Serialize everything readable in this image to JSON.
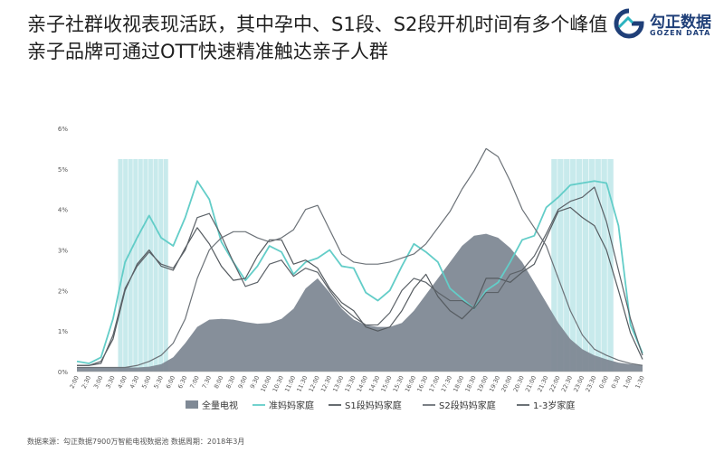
{
  "title_lines": [
    "亲子社群收视表现活跃，其中孕中、S1段、S2段开机时间有多个峰值",
    "亲子品牌可通过OTT快速精准触达亲子人群"
  ],
  "logo": {
    "name": "勾正数据",
    "sub": "GOZEN DATA",
    "color": "#1f3f78"
  },
  "footer": "数据来源：勾正数据7900万智能电视数据池  数据周期：2018年3月",
  "chart_data": {
    "type": "area",
    "x": [
      "2:00",
      "2:30",
      "3:00",
      "3:30",
      "4:00",
      "4:30",
      "5:00",
      "5:30",
      "6:00",
      "6:30",
      "7:00",
      "7:30",
      "8:00",
      "8:30",
      "9:00",
      "9:30",
      "10:00",
      "10:30",
      "11:00",
      "11:30",
      "12:00",
      "12:30",
      "13:00",
      "13:30",
      "14:00",
      "14:30",
      "15:00",
      "15:30",
      "16:00",
      "16:30",
      "17:00",
      "17:30",
      "18:00",
      "18:30",
      "19:00",
      "19:30",
      "20:00",
      "20:30",
      "21:00",
      "21:30",
      "22:00",
      "22:30",
      "23:00",
      "23:30",
      "0:00",
      "0:30",
      "1:00",
      "1:30"
    ],
    "yticks": [
      "0%",
      "1%",
      "2%",
      "3%",
      "4%",
      "5%",
      "6%"
    ],
    "ylim": [
      0,
      6
    ],
    "series": [
      {
        "name": "全量电视",
        "kind": "area",
        "color": "#7f8995",
        "values": [
          0.1,
          0.1,
          0.1,
          0.1,
          0.1,
          0.1,
          0.12,
          0.18,
          0.35,
          0.7,
          1.1,
          1.28,
          1.3,
          1.28,
          1.22,
          1.18,
          1.2,
          1.3,
          1.55,
          2.05,
          2.3,
          1.95,
          1.55,
          1.28,
          1.15,
          1.1,
          1.1,
          1.2,
          1.5,
          1.9,
          2.3,
          2.7,
          3.1,
          3.35,
          3.4,
          3.3,
          3.05,
          2.7,
          2.2,
          1.7,
          1.2,
          0.8,
          0.55,
          0.4,
          0.3,
          0.22,
          0.18,
          0.15
        ]
      },
      {
        "name": "准妈妈家庭",
        "kind": "line",
        "color": "#63cdc8",
        "values": [
          0.25,
          0.2,
          0.35,
          1.3,
          2.7,
          3.3,
          3.85,
          3.3,
          3.1,
          3.8,
          4.7,
          4.25,
          3.2,
          2.7,
          2.25,
          2.6,
          3.1,
          2.95,
          2.4,
          2.7,
          2.8,
          3.0,
          2.6,
          2.55,
          1.95,
          1.75,
          2.0,
          2.6,
          3.15,
          2.95,
          2.7,
          2.05,
          1.8,
          1.55,
          2.0,
          2.2,
          2.7,
          3.25,
          3.35,
          4.05,
          4.3,
          4.6,
          4.65,
          4.7,
          4.65,
          3.6,
          1.15,
          0.45
        ]
      },
      {
        "name": "S1段妈妈家庭",
        "kind": "line",
        "color": "#555b60",
        "values": [
          0.15,
          0.15,
          0.25,
          0.8,
          2.0,
          2.65,
          3.0,
          2.6,
          2.5,
          3.05,
          3.55,
          3.15,
          2.6,
          2.25,
          2.3,
          2.85,
          3.25,
          3.25,
          2.65,
          2.75,
          2.55,
          2.05,
          1.7,
          1.5,
          1.1,
          1.0,
          1.1,
          1.5,
          2.05,
          2.4,
          1.85,
          1.5,
          1.3,
          1.6,
          2.3,
          2.3,
          2.2,
          2.45,
          2.65,
          3.3,
          3.95,
          4.05,
          3.8,
          3.6,
          3.0,
          2.0,
          0.95,
          0.3
        ]
      },
      {
        "name": "S2段妈妈家庭",
        "kind": "line",
        "color": "#6c7278",
        "values": [
          0.1,
          0.1,
          0.1,
          0.1,
          0.1,
          0.15,
          0.25,
          0.4,
          0.7,
          1.3,
          2.3,
          3.0,
          3.3,
          3.45,
          3.45,
          3.3,
          3.2,
          3.3,
          3.5,
          4.0,
          4.1,
          3.5,
          2.9,
          2.7,
          2.65,
          2.65,
          2.7,
          2.8,
          2.9,
          3.15,
          3.55,
          3.95,
          4.5,
          4.95,
          5.5,
          5.3,
          4.7,
          4.0,
          3.55,
          3.1,
          2.3,
          1.5,
          0.9,
          0.55,
          0.4,
          0.28,
          0.2,
          0.15
        ]
      },
      {
        "name": "1-3岁家庭",
        "kind": "line",
        "color": "#5c6268",
        "values": [
          0.15,
          0.15,
          0.2,
          0.9,
          2.05,
          2.6,
          2.95,
          2.65,
          2.55,
          3.0,
          3.8,
          3.9,
          3.35,
          2.7,
          2.1,
          2.2,
          2.65,
          2.75,
          2.35,
          2.55,
          2.45,
          2.0,
          1.6,
          1.35,
          1.15,
          1.15,
          1.45,
          2.0,
          2.3,
          2.2,
          1.95,
          1.75,
          1.75,
          1.55,
          1.95,
          1.95,
          2.4,
          2.5,
          2.85,
          3.4,
          4.0,
          4.2,
          4.3,
          4.55,
          3.7,
          2.5,
          1.3,
          0.4
        ]
      }
    ],
    "highlights": [
      {
        "from": "4:00",
        "to": "5:30"
      },
      {
        "from": "22:00",
        "to": "0:00"
      }
    ],
    "highlight_color": "#9bd8dc"
  }
}
